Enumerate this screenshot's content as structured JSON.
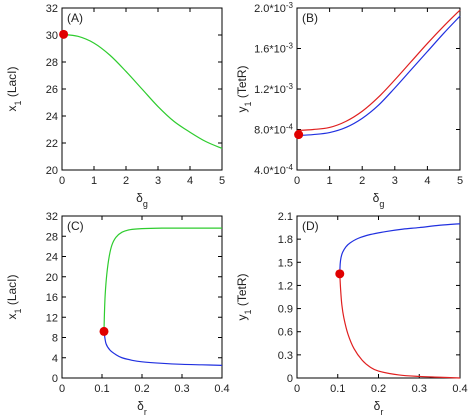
{
  "chart_data": [
    {
      "type": "line",
      "panel_label": "(A)",
      "xlabel": {
        "base": "δ",
        "sub": "g"
      },
      "ylabel": {
        "main": "x",
        "sub": "1",
        "rest": " (LacI)"
      },
      "xlim": [
        0,
        5
      ],
      "ylim": [
        20,
        32
      ],
      "xticks": [
        "0",
        "1",
        "2",
        "3",
        "4",
        "5"
      ],
      "yticks": [
        "20",
        "22",
        "24",
        "26",
        "28",
        "30",
        "32"
      ],
      "series": [
        {
          "color": "#2ecc2e",
          "x": [
            0,
            0.5,
            1,
            1.5,
            2,
            2.5,
            3,
            3.5,
            4,
            4.5,
            5
          ],
          "y": [
            30.05,
            29.9,
            29.4,
            28.5,
            27.3,
            26.0,
            24.7,
            23.6,
            22.8,
            22.1,
            21.6
          ]
        }
      ],
      "markers": [
        {
          "x": 0.05,
          "y": 30.05,
          "color": "#e00000"
        }
      ]
    },
    {
      "type": "line",
      "panel_label": "(B)",
      "xlabel": {
        "base": "δ",
        "sub": "g"
      },
      "ylabel": {
        "main": "y",
        "sub": "1",
        "rest": " (TetR)"
      },
      "xlim": [
        0,
        5
      ],
      "ylim": [
        0.0004,
        0.002
      ],
      "xticks": [
        "0",
        "1",
        "2",
        "3",
        "4",
        "5"
      ],
      "yticks": [
        "4.0*10^-4",
        "8.0*10^-4",
        "1.2*10^-3",
        "1.6*10^-3",
        "2.0*10^-3"
      ],
      "series": [
        {
          "color": "#e02020",
          "x": [
            0,
            0.5,
            1,
            1.5,
            2,
            2.5,
            3,
            3.5,
            4,
            4.5,
            5
          ],
          "y": [
            0.00079,
            0.0008,
            0.00082,
            0.00088,
            0.00098,
            0.00112,
            0.00129,
            0.00147,
            0.00165,
            0.00182,
            0.00198
          ]
        },
        {
          "color": "#2030e0",
          "x": [
            0,
            0.5,
            1,
            1.5,
            2,
            2.5,
            3,
            3.5,
            4,
            4.5,
            5
          ],
          "y": [
            0.00074,
            0.00075,
            0.00077,
            0.00082,
            0.00091,
            0.00104,
            0.00121,
            0.00139,
            0.00157,
            0.00175,
            0.00192
          ]
        }
      ],
      "markers": [
        {
          "x": 0.05,
          "y": 0.00075,
          "color": "#e00000"
        }
      ]
    },
    {
      "type": "line",
      "panel_label": "(C)",
      "xlabel": {
        "base": "δ",
        "sub": "r"
      },
      "ylabel": {
        "main": "x",
        "sub": "1",
        "rest": " (LacI)"
      },
      "xlim": [
        0,
        0.4
      ],
      "ylim": [
        0,
        32
      ],
      "xticks": [
        "0",
        "0.1",
        "0.2",
        "0.3",
        "0.4"
      ],
      "yticks": [
        "0",
        "4",
        "8",
        "12",
        "16",
        "20",
        "24",
        "28",
        "32"
      ],
      "series": [
        {
          "color": "#2ecc2e",
          "x": [
            0.105,
            0.106,
            0.108,
            0.112,
            0.118,
            0.125,
            0.135,
            0.15,
            0.17,
            0.2,
            0.25,
            0.3,
            0.35,
            0.4
          ],
          "y": [
            9.2,
            12.5,
            16.5,
            20.5,
            24.0,
            26.3,
            27.8,
            28.8,
            29.3,
            29.5,
            29.6,
            29.6,
            29.6,
            29.6
          ]
        },
        {
          "color": "#2030e0",
          "x": [
            0.105,
            0.11,
            0.12,
            0.135,
            0.15,
            0.175,
            0.2,
            0.25,
            0.3,
            0.35,
            0.4
          ],
          "y": [
            9.2,
            6.8,
            5.5,
            4.6,
            4.0,
            3.5,
            3.2,
            2.9,
            2.7,
            2.6,
            2.5
          ]
        }
      ],
      "markers": [
        {
          "x": 0.105,
          "y": 9.2,
          "color": "#e00000"
        }
      ]
    },
    {
      "type": "line",
      "panel_label": "(D)",
      "xlabel": {
        "base": "δ",
        "sub": "r"
      },
      "ylabel": {
        "main": "y",
        "sub": "1",
        "rest": " (TetR)"
      },
      "xlim": [
        0,
        0.4
      ],
      "ylim": [
        0,
        2.1
      ],
      "xticks": [
        "0",
        "0.1",
        "0.2",
        "0.3",
        "0.4"
      ],
      "yticks": [
        "0",
        "0.3",
        "0.6",
        "0.9",
        "1.2",
        "1.5",
        "1.8",
        "2.1"
      ],
      "series": [
        {
          "color": "#2030e0",
          "x": [
            0.105,
            0.106,
            0.108,
            0.112,
            0.12,
            0.13,
            0.15,
            0.18,
            0.22,
            0.26,
            0.3,
            0.35,
            0.4
          ],
          "y": [
            1.35,
            1.48,
            1.56,
            1.63,
            1.7,
            1.75,
            1.81,
            1.86,
            1.9,
            1.93,
            1.95,
            1.98,
            2.0
          ]
        },
        {
          "color": "#e02020",
          "x": [
            0.105,
            0.107,
            0.11,
            0.115,
            0.125,
            0.14,
            0.16,
            0.18,
            0.2,
            0.25,
            0.3,
            0.35,
            0.4
          ],
          "y": [
            1.35,
            1.15,
            0.95,
            0.78,
            0.57,
            0.38,
            0.23,
            0.14,
            0.09,
            0.04,
            0.02,
            0.01,
            0.0
          ]
        }
      ],
      "markers": [
        {
          "x": 0.105,
          "y": 1.35,
          "color": "#e00000"
        }
      ]
    }
  ]
}
